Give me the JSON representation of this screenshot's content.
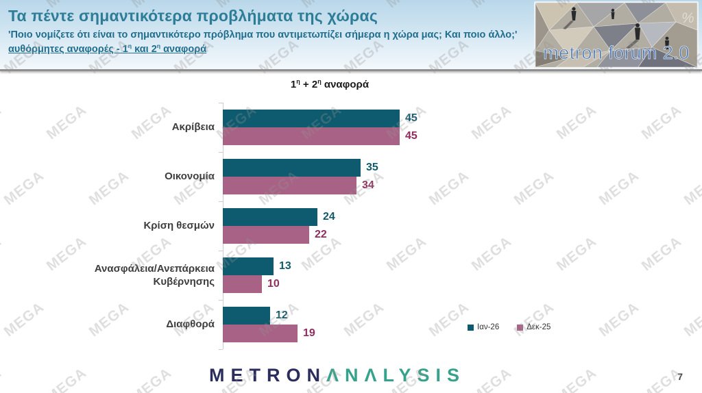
{
  "header": {
    "title": "Τα πέντε σημαντικότερα προβλήματα της χώρας",
    "subtitle": "'Ποιο νομίζετε ότι είναι το σημαντικότερο πρόβλημα που αντιμετωπίζει σήμερα η χώρα μας; Και ποιο άλλο;'",
    "ref_line": {
      "p1": "αυθόρμητες αναφορές - 1",
      "sup1": "η",
      "p2": " και 2",
      "sup2": "η",
      "p3": " αναφορά"
    },
    "logo": {
      "text": "metron forum 2.0",
      "percent": "%"
    }
  },
  "chart_data": {
    "type": "bar",
    "orientation": "horizontal",
    "title": "1η + 2η αναφορά",
    "title_parts": {
      "p1": "1",
      "sup1": "η",
      "p2": " + 2",
      "sup2": "η",
      "p3": " αναφορά"
    },
    "categories": [
      "Ακρίβεια",
      "Οικονομία",
      "Κρίση θεσμών",
      "Ανασφάλεια/Ανεπάρκεια Κυβέρνησης",
      "Διαφθορά"
    ],
    "series": [
      {
        "name": "Ιαν-26",
        "color": "#0e5a6e",
        "label_color": "#115a6b",
        "values": [
          45,
          35,
          24,
          13,
          12
        ]
      },
      {
        "name": "Δεκ-25",
        "color": "#a86285",
        "label_color": "#902d5e",
        "values": [
          45,
          34,
          22,
          10,
          19
        ]
      }
    ],
    "xlim": [
      0,
      50
    ],
    "grid": false,
    "legend_position": "bottom-right"
  },
  "footer": {
    "logo_part1": "METRON",
    "logo_part2": "ΛNΛLYSIS",
    "page_number": "7"
  },
  "watermark": {
    "text": "MEGA"
  },
  "colors": {
    "header_title": "#2e7d97",
    "header_subtitle": "#1f6e8e",
    "bar_teal": "#0e5a6e",
    "bar_mauve": "#a86285",
    "value_teal": "#115a6b",
    "value_maroon": "#902d5e",
    "logo_navy": "#2b2e5c",
    "logo_green": "#36a28b",
    "logo_blue_text": "#4d76ab"
  }
}
